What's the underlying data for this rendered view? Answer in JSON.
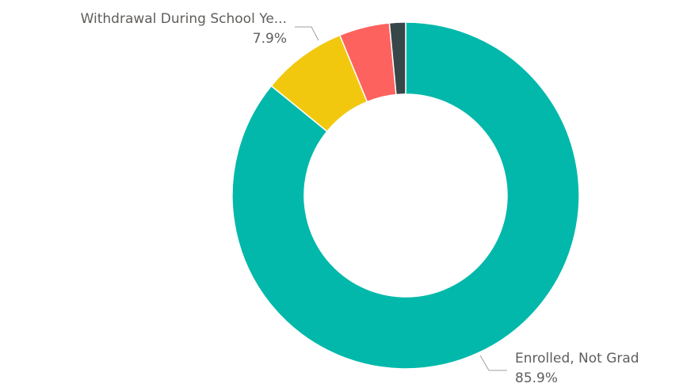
{
  "chart_data": {
    "type": "pie",
    "donut": true,
    "title": "",
    "start_angle_deg": 0,
    "categories": [
      "Enrolled, Not Grad",
      "Withdrawal During School Ye...",
      "",
      ""
    ],
    "values": [
      85.9,
      7.9,
      4.7,
      1.5
    ],
    "colors": [
      "#01B8AA",
      "#F2C80F",
      "#FD625E",
      "#374649"
    ],
    "data_labels": [
      {
        "category": "Enrolled, Not Grad",
        "value": "85.9%"
      },
      {
        "category": "Withdrawal During School Ye...",
        "value": "7.9%"
      }
    ]
  }
}
